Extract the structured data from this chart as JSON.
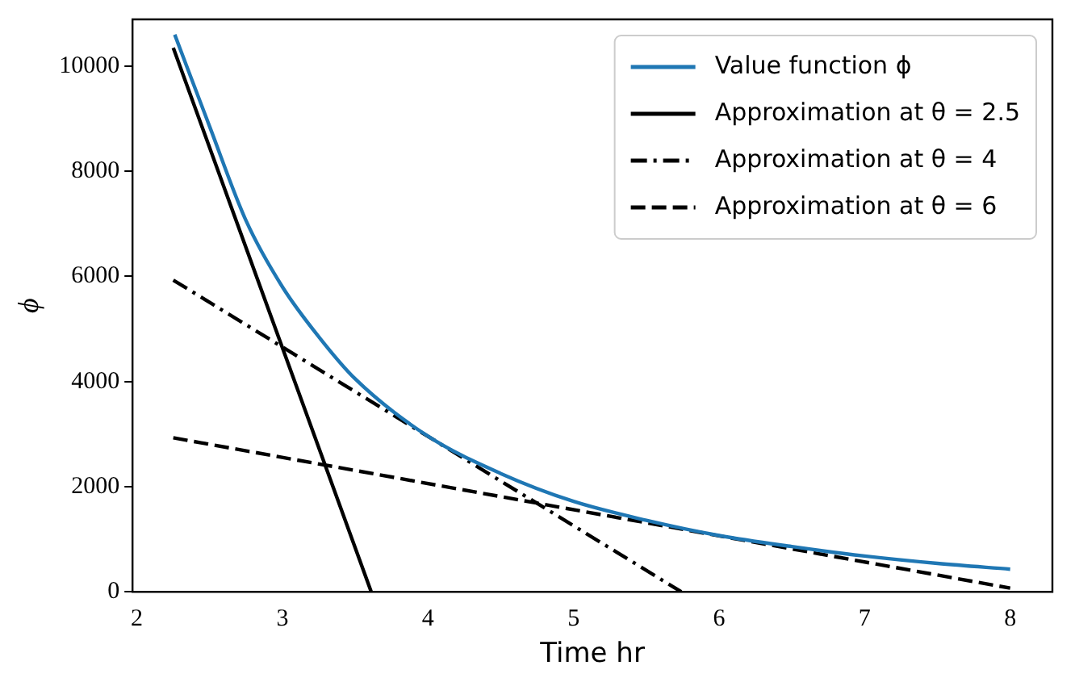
{
  "chart_data": {
    "type": "line",
    "xlabel": "Time hr",
    "ylabel": "ϕ",
    "xlim": [
      1.97,
      8.29
    ],
    "ylim": [
      0,
      10890
    ],
    "xticks": [
      2,
      3,
      4,
      5,
      6,
      7,
      8
    ],
    "yticks": [
      0,
      2000,
      4000,
      6000,
      8000,
      10000
    ],
    "grid": false,
    "legend": "top right",
    "marker": "none",
    "series": [
      {
        "name": "Value function ϕ",
        "color": "#1f77b4",
        "line_style": "solid",
        "x": [
          2.26,
          2.5,
          2.75,
          3,
          3.25,
          3.5,
          4,
          4.5,
          5,
          5.5,
          6,
          6.5,
          7,
          7.5,
          8
        ],
        "values": [
          10600,
          8850,
          7060,
          5800,
          4850,
          4050,
          2960,
          2250,
          1720,
          1360,
          1070,
          860,
          680,
          540,
          430
        ]
      },
      {
        "name": "Approximation at θ = 2.5",
        "color": "#000000",
        "line_style": "solid",
        "x": [
          2.25,
          3.61
        ],
        "values": [
          10350,
          0
        ]
      },
      {
        "name": "Approximation at θ = 4",
        "color": "#000000",
        "line_style": "dashdot",
        "x": [
          2.25,
          5.74
        ],
        "values": [
          5930,
          0
        ]
      },
      {
        "name": "Approximation at θ = 6",
        "color": "#000000",
        "line_style": "dashed",
        "x": [
          2.25,
          8
        ],
        "values": [
          2930,
          70
        ]
      }
    ]
  }
}
